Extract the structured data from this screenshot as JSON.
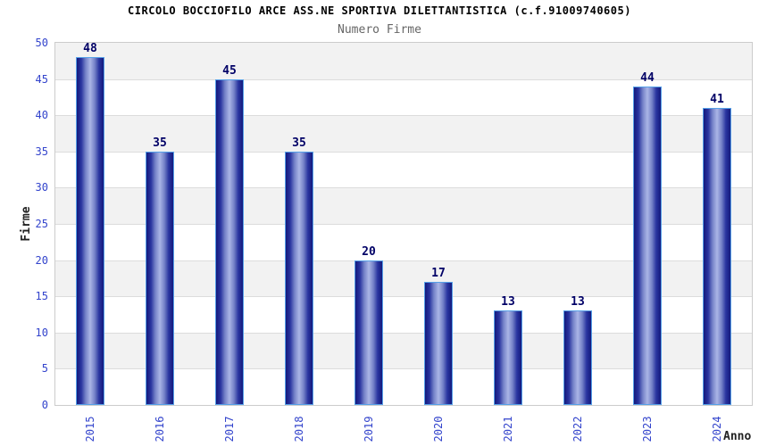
{
  "header": {
    "title": "CIRCOLO BOCCIOFILO ARCE ASS.NE SPORTIVA DILETTANTISTICA (c.f.91009740605)",
    "subtitle": "Numero Firme"
  },
  "chart_data": {
    "type": "bar",
    "title": "CIRCOLO BOCCIOFILO ARCE ASS.NE SPORTIVA DILETTANTISTICA (c.f.91009740605)",
    "subtitle": "Numero Firme",
    "categories": [
      "2015",
      "2016",
      "2017",
      "2018",
      "2019",
      "2020",
      "2021",
      "2022",
      "2023",
      "2024"
    ],
    "values": [
      48,
      35,
      45,
      35,
      20,
      17,
      13,
      13,
      44,
      41
    ],
    "xlabel": "Anno",
    "ylabel": "Firme",
    "ylim": [
      0,
      50
    ],
    "yticks": [
      0,
      5,
      10,
      15,
      20,
      25,
      30,
      35,
      40,
      45,
      50
    ],
    "grid": true,
    "band_fill": "alternating horizontal 5-unit bands",
    "legend_position": "none",
    "data_labels": true
  },
  "colors": {
    "title_text": "#000000",
    "subtitle_text": "#666666",
    "tick_label_blue": "#3344cc",
    "data_label_navy": "#000066",
    "axis_title_text": "#222222",
    "plot_border": "#cccccc",
    "gridline": "#dcdcdc",
    "band_gray": "#f2f2f2",
    "band_white": "#ffffff",
    "bar_border": "#55a0e8",
    "bar_gradient": [
      "#141a7d",
      "#2a35a0",
      "#7582c8",
      "#aab5e6",
      "#7582c8",
      "#2a35a0",
      "#141a7d"
    ]
  }
}
